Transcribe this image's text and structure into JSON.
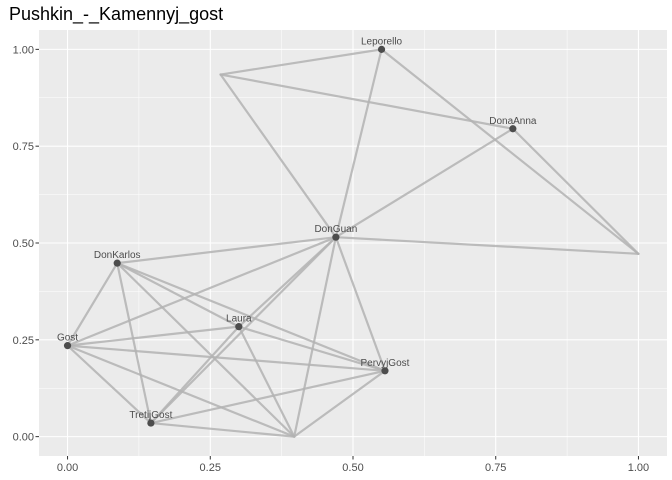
{
  "chart_data": {
    "type": "network",
    "title": "Pushkin_-_Kamennyj_gost",
    "xlabel": "",
    "ylabel": "",
    "xlim": [
      -0.05,
      1.05
    ],
    "ylim": [
      -0.05,
      1.05
    ],
    "x_ticks": [
      {
        "value": 0.0,
        "label": "0.00"
      },
      {
        "value": 0.25,
        "label": "0.25"
      },
      {
        "value": 0.5,
        "label": "0.50"
      },
      {
        "value": 0.75,
        "label": "0.75"
      },
      {
        "value": 1.0,
        "label": "1.00"
      }
    ],
    "y_ticks": [
      {
        "value": 0.0,
        "label": "0.00"
      },
      {
        "value": 0.25,
        "label": "0.25"
      },
      {
        "value": 0.5,
        "label": "0.50"
      },
      {
        "value": 0.75,
        "label": "0.75"
      },
      {
        "value": 1.0,
        "label": "1.00"
      }
    ],
    "grid": true,
    "nodes": [
      {
        "id": "Leporello",
        "label": "Leporello",
        "x": 0.55,
        "y": 1.0
      },
      {
        "id": "DonaAnna",
        "label": "DonaAnna",
        "x": 0.78,
        "y": 0.795
      },
      {
        "id": "DonGuan",
        "label": "DonGuan",
        "x": 0.47,
        "y": 0.515
      },
      {
        "id": "DonKarlos",
        "label": "DonKarlos",
        "x": 0.087,
        "y": 0.448
      },
      {
        "id": "Laura",
        "label": "Laura",
        "x": 0.3,
        "y": 0.284
      },
      {
        "id": "Gost",
        "label": "Gost",
        "x": 0.0,
        "y": 0.235
      },
      {
        "id": "PervyjGost",
        "label": "PervyjGost",
        "x": 0.556,
        "y": 0.17
      },
      {
        "id": "TretijGost",
        "label": "TretijGost",
        "x": 0.146,
        "y": 0.035
      },
      {
        "id": "u1",
        "label": "",
        "x": 0.268,
        "y": 0.935
      },
      {
        "id": "u2",
        "label": "",
        "x": 1.0,
        "y": 0.472
      },
      {
        "id": "u3",
        "label": "",
        "x": 0.397,
        "y": 0.0
      }
    ],
    "edges": [
      [
        "u1",
        "Leporello"
      ],
      [
        "u1",
        "DonaAnna"
      ],
      [
        "u1",
        "DonGuan"
      ],
      [
        "Leporello",
        "DonGuan"
      ],
      [
        "Leporello",
        "u2"
      ],
      [
        "DonaAnna",
        "u2"
      ],
      [
        "DonaAnna",
        "DonGuan"
      ],
      [
        "DonGuan",
        "u2"
      ],
      [
        "DonGuan",
        "DonKarlos"
      ],
      [
        "DonGuan",
        "Gost"
      ],
      [
        "DonGuan",
        "Laura"
      ],
      [
        "DonGuan",
        "PervyjGost"
      ],
      [
        "DonGuan",
        "TretijGost"
      ],
      [
        "DonGuan",
        "u3"
      ],
      [
        "DonKarlos",
        "Gost"
      ],
      [
        "DonKarlos",
        "Laura"
      ],
      [
        "DonKarlos",
        "PervyjGost"
      ],
      [
        "DonKarlos",
        "TretijGost"
      ],
      [
        "DonKarlos",
        "u3"
      ],
      [
        "Gost",
        "Laura"
      ],
      [
        "Gost",
        "PervyjGost"
      ],
      [
        "Gost",
        "TretijGost"
      ],
      [
        "Gost",
        "u3"
      ],
      [
        "Laura",
        "PervyjGost"
      ],
      [
        "Laura",
        "TretijGost"
      ],
      [
        "Laura",
        "u3"
      ],
      [
        "PervyjGost",
        "TretijGost"
      ],
      [
        "PervyjGost",
        "u3"
      ],
      [
        "TretijGost",
        "u3"
      ]
    ],
    "colors": {
      "panel_background": "#ebebeb",
      "grid_major": "#ffffff",
      "edge": "#b3b3b3",
      "node": "#4d4d4d",
      "label": "#4d4d4d"
    }
  }
}
